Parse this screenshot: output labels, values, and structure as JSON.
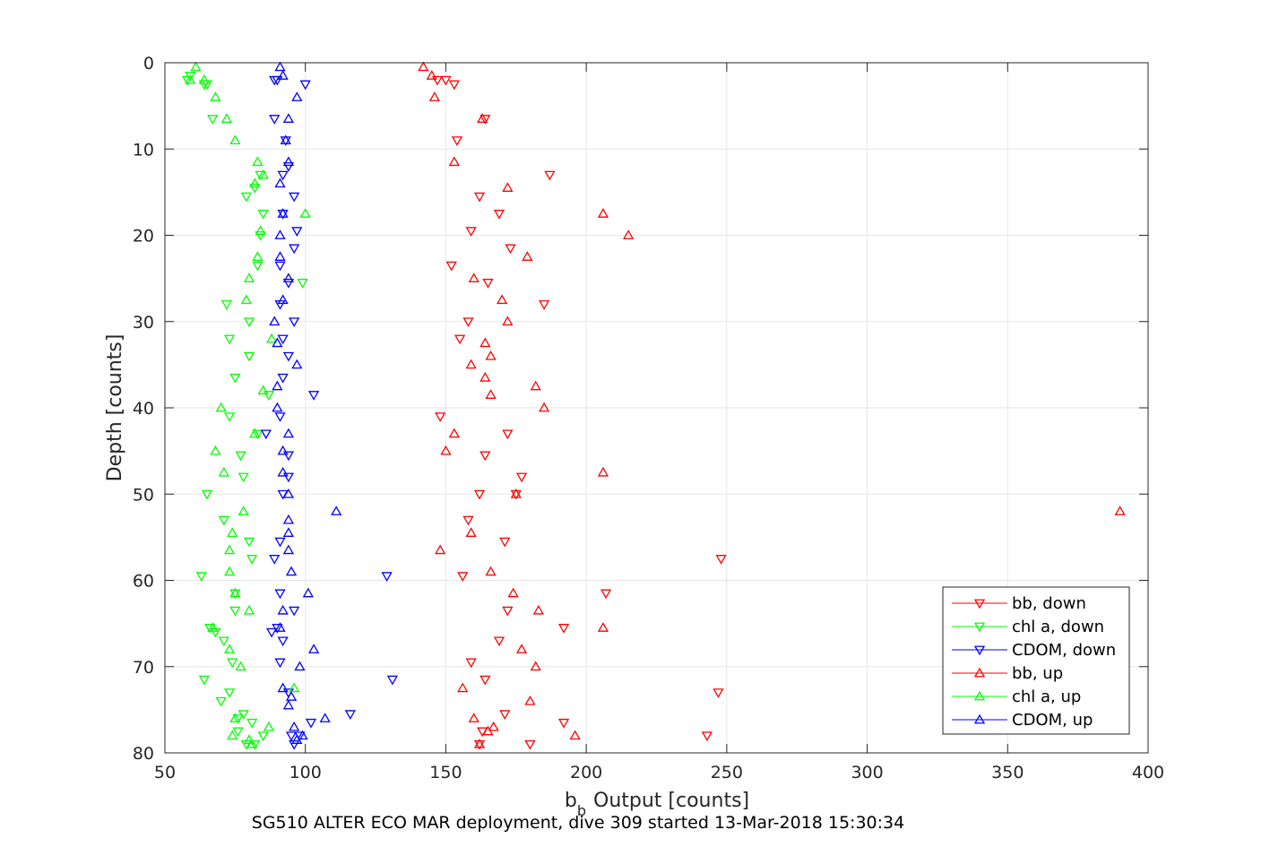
{
  "caption": "SG510 ALTER ECO MAR deployment, dive 309 started 13-Mar-2018 15:30:34",
  "chart_data": {
    "type": "scatter",
    "xlabel": "Output [counts]",
    "xlabel_symbol": "b",
    "xlabel_subscript": "b",
    "ylabel": "Depth [counts]",
    "xlim": [
      50,
      400
    ],
    "ylim": [
      0,
      80
    ],
    "y_reversed": true,
    "xticks": [
      50,
      100,
      150,
      200,
      250,
      300,
      350,
      400
    ],
    "yticks": [
      0,
      10,
      20,
      30,
      40,
      50,
      60,
      70,
      80
    ],
    "grid": true,
    "legend_position": "bottom-right",
    "series": [
      {
        "name": "bb, down",
        "color": "#ff0000",
        "marker": "triangle-down",
        "points": [
          [
            150,
            2
          ],
          [
            153,
            2.5
          ],
          [
            147,
            2
          ],
          [
            164,
            6.5
          ],
          [
            154,
            9
          ],
          [
            187,
            13
          ],
          [
            162,
            15.5
          ],
          [
            169,
            17.5
          ],
          [
            159,
            19.5
          ],
          [
            173,
            21.5
          ],
          [
            152,
            23.5
          ],
          [
            165,
            25.5
          ],
          [
            185,
            28
          ],
          [
            158,
            30
          ],
          [
            155,
            32
          ],
          [
            172,
            43
          ],
          [
            148,
            41
          ],
          [
            164,
            45.5
          ],
          [
            177,
            48
          ],
          [
            175,
            50
          ],
          [
            162,
            50
          ],
          [
            158,
            53
          ],
          [
            171,
            55.5
          ],
          [
            248,
            57.5
          ],
          [
            156,
            59.5
          ],
          [
            207,
            61.5
          ],
          [
            172,
            63.5
          ],
          [
            192,
            65.5
          ],
          [
            169,
            67
          ],
          [
            159,
            69.5
          ],
          [
            164,
            71.5
          ],
          [
            247,
            73
          ],
          [
            171,
            75.5
          ],
          [
            192,
            76.5
          ],
          [
            163,
            77.5
          ],
          [
            243,
            78
          ],
          [
            162,
            79
          ],
          [
            180,
            79
          ]
        ]
      },
      {
        "name": "chl a, down",
        "color": "#00ff00",
        "marker": "triangle-down",
        "points": [
          [
            58,
            2
          ],
          [
            59,
            1.5
          ],
          [
            64,
            2.5
          ],
          [
            65,
            2.5
          ],
          [
            67,
            6.5
          ],
          [
            84,
            13
          ],
          [
            82,
            14.5
          ],
          [
            79,
            15.5
          ],
          [
            85,
            17.5
          ],
          [
            84,
            20
          ],
          [
            83,
            23.5
          ],
          [
            99,
            25.5
          ],
          [
            72,
            28
          ],
          [
            80,
            30
          ],
          [
            73,
            32
          ],
          [
            80,
            34
          ],
          [
            75,
            36.5
          ],
          [
            87,
            38.5
          ],
          [
            73,
            41
          ],
          [
            83,
            43
          ],
          [
            77,
            45.5
          ],
          [
            78,
            48
          ],
          [
            65,
            50
          ],
          [
            71,
            53
          ],
          [
            80,
            55.5
          ],
          [
            81,
            57.5
          ],
          [
            63,
            59.5
          ],
          [
            75,
            61.5
          ],
          [
            75,
            63.5
          ],
          [
            66,
            65.5
          ],
          [
            68,
            66
          ],
          [
            71,
            67
          ],
          [
            74,
            69.5
          ],
          [
            64,
            71.5
          ],
          [
            73,
            73
          ],
          [
            70,
            74
          ],
          [
            78,
            75.5
          ],
          [
            76,
            76
          ],
          [
            81,
            76.5
          ],
          [
            76,
            77.5
          ],
          [
            85,
            78
          ],
          [
            79,
            79
          ],
          [
            82,
            79
          ]
        ]
      },
      {
        "name": "CDOM, down",
        "color": "#0000ff",
        "marker": "triangle-down",
        "points": [
          [
            89,
            2
          ],
          [
            90,
            2
          ],
          [
            100,
            2.5
          ],
          [
            89,
            6.5
          ],
          [
            93,
            9
          ],
          [
            94,
            12
          ],
          [
            92,
            13
          ],
          [
            96,
            15.5
          ],
          [
            92,
            17.5
          ],
          [
            97,
            19.5
          ],
          [
            96,
            21.5
          ],
          [
            91,
            23.5
          ],
          [
            94,
            25.5
          ],
          [
            91,
            28
          ],
          [
            96,
            30
          ],
          [
            92,
            32
          ],
          [
            94,
            34
          ],
          [
            92,
            36.5
          ],
          [
            103,
            38.5
          ],
          [
            91,
            41
          ],
          [
            86,
            43
          ],
          [
            94,
            45.5
          ],
          [
            94,
            48
          ],
          [
            92,
            50
          ],
          [
            91,
            55.5
          ],
          [
            89,
            57.5
          ],
          [
            129,
            59.5
          ],
          [
            91,
            61.5
          ],
          [
            96,
            63.5
          ],
          [
            90,
            65.5
          ],
          [
            88,
            66
          ],
          [
            92,
            67
          ],
          [
            91,
            69.5
          ],
          [
            131,
            71.5
          ],
          [
            94,
            73
          ],
          [
            116,
            75.5
          ],
          [
            102,
            76.5
          ],
          [
            95,
            78
          ],
          [
            98,
            78
          ],
          [
            96,
            79
          ]
        ]
      },
      {
        "name": "bb, up",
        "color": "#ff0000",
        "marker": "triangle-up",
        "points": [
          [
            142,
            0.5
          ],
          [
            145,
            1.5
          ],
          [
            146,
            4
          ],
          [
            163,
            6.5
          ],
          [
            153,
            11.5
          ],
          [
            172,
            14.5
          ],
          [
            206,
            17.5
          ],
          [
            215,
            20
          ],
          [
            179,
            22.5
          ],
          [
            160,
            25
          ],
          [
            170,
            27.5
          ],
          [
            172,
            30
          ],
          [
            164,
            32.5
          ],
          [
            166,
            34
          ],
          [
            159,
            35
          ],
          [
            164,
            36.5
          ],
          [
            182,
            37.5
          ],
          [
            166,
            38.5
          ],
          [
            185,
            40
          ],
          [
            153,
            43
          ],
          [
            150,
            45
          ],
          [
            206,
            47.5
          ],
          [
            175,
            50
          ],
          [
            390,
            52
          ],
          [
            159,
            54.5
          ],
          [
            148,
            56.5
          ],
          [
            166,
            59
          ],
          [
            174,
            61.5
          ],
          [
            183,
            63.5
          ],
          [
            206,
            65.5
          ],
          [
            177,
            68
          ],
          [
            182,
            70
          ],
          [
            156,
            72.5
          ],
          [
            180,
            74
          ],
          [
            160,
            76
          ],
          [
            167,
            77
          ],
          [
            196,
            78
          ],
          [
            165,
            77.5
          ],
          [
            162,
            79
          ]
        ]
      },
      {
        "name": "chl a, up",
        "color": "#00ff00",
        "marker": "triangle-up",
        "points": [
          [
            61,
            0.5
          ],
          [
            59,
            2
          ],
          [
            64,
            2
          ],
          [
            68,
            4
          ],
          [
            72,
            6.5
          ],
          [
            75,
            9
          ],
          [
            83,
            11.5
          ],
          [
            85,
            13
          ],
          [
            82,
            14
          ],
          [
            100,
            17.5
          ],
          [
            84,
            19.5
          ],
          [
            83,
            22.5
          ],
          [
            80,
            25
          ],
          [
            79,
            27.5
          ],
          [
            88,
            32
          ],
          [
            85,
            38
          ],
          [
            70,
            40
          ],
          [
            82,
            43
          ],
          [
            68,
            45
          ],
          [
            71,
            47.5
          ],
          [
            78,
            52
          ],
          [
            74,
            54.5
          ],
          [
            73,
            56.5
          ],
          [
            73,
            59
          ],
          [
            75,
            61.5
          ],
          [
            80,
            63.5
          ],
          [
            67,
            65.5
          ],
          [
            73,
            68
          ],
          [
            77,
            70
          ],
          [
            96,
            72.5
          ],
          [
            75,
            76
          ],
          [
            87,
            77
          ],
          [
            74,
            78
          ],
          [
            80,
            78.5
          ],
          [
            81,
            79
          ]
        ]
      },
      {
        "name": "CDOM, up",
        "color": "#0000ff",
        "marker": "triangle-up",
        "points": [
          [
            91,
            0.5
          ],
          [
            92,
            1.5
          ],
          [
            97,
            4
          ],
          [
            94,
            6.5
          ],
          [
            93,
            9
          ],
          [
            94,
            11.5
          ],
          [
            91,
            14
          ],
          [
            92,
            17.5
          ],
          [
            91,
            20
          ],
          [
            91,
            22.5
          ],
          [
            94,
            25
          ],
          [
            92,
            27.5
          ],
          [
            89,
            30
          ],
          [
            90,
            32.5
          ],
          [
            97,
            35
          ],
          [
            90,
            37.5
          ],
          [
            90,
            40
          ],
          [
            94,
            43
          ],
          [
            92,
            45
          ],
          [
            92,
            47.5
          ],
          [
            94,
            50
          ],
          [
            111,
            52
          ],
          [
            94,
            53
          ],
          [
            94,
            54.5
          ],
          [
            94,
            56.5
          ],
          [
            95,
            59
          ],
          [
            101,
            61.5
          ],
          [
            92,
            63.5
          ],
          [
            91,
            65.5
          ],
          [
            103,
            68
          ],
          [
            98,
            70
          ],
          [
            92,
            72.5
          ],
          [
            95,
            73.5
          ],
          [
            94,
            74.5
          ],
          [
            107,
            76
          ],
          [
            96,
            77
          ],
          [
            99,
            78
          ],
          [
            97,
            78.5
          ]
        ]
      }
    ]
  }
}
